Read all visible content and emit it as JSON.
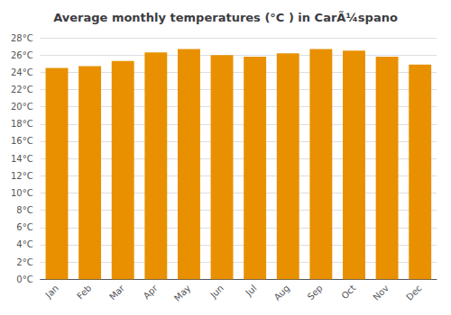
{
  "chart_data": {
    "type": "bar",
    "title": "Average monthly temperatures (°C ) in CarÃ¼spano",
    "categories": [
      "Jan",
      "Feb",
      "Mar",
      "Apr",
      "May",
      "Jun",
      "Jul",
      "Aug",
      "Sep",
      "Oct",
      "Nov",
      "Dec"
    ],
    "values": [
      24.5,
      24.7,
      25.3,
      26.3,
      26.7,
      26.0,
      25.8,
      26.2,
      26.7,
      26.5,
      25.8,
      24.9
    ],
    "color": "#E89000",
    "ylim": [
      0,
      28
    ],
    "yticks": [
      {
        "value": 0,
        "label": "0°C"
      },
      {
        "value": 2,
        "label": "2°C"
      },
      {
        "value": 4,
        "label": "4°C"
      },
      {
        "value": 6,
        "label": "6°C"
      },
      {
        "value": 8,
        "label": "8°C"
      },
      {
        "value": 10,
        "label": "10°C"
      },
      {
        "value": 12,
        "label": "12°C"
      },
      {
        "value": 14,
        "label": "14°C"
      },
      {
        "value": 16,
        "label": "16°C"
      },
      {
        "value": 18,
        "label": "18°C"
      },
      {
        "value": 20,
        "label": "20°C"
      },
      {
        "value": 22,
        "label": "22°C"
      },
      {
        "value": 24,
        "label": "24°C"
      },
      {
        "value": 26,
        "label": "26°C"
      },
      {
        "value": 28,
        "label": "28°C"
      }
    ],
    "grid": true
  }
}
